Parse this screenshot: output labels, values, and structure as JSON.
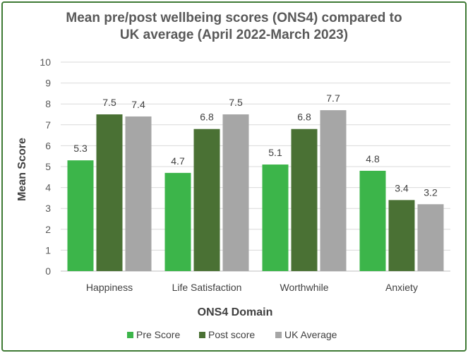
{
  "chart_data": {
    "type": "bar",
    "title_line1": "Mean pre/post wellbeing scores (ONS4) compared to",
    "title_line2": "UK average (April 2022-March 2023)",
    "xlabel": "ONS4 Domain",
    "ylabel": "Mean Score",
    "ylim": [
      0,
      10
    ],
    "yticks": [
      "0",
      "1",
      "2",
      "3",
      "4",
      "5",
      "6",
      "7",
      "8",
      "9",
      "10"
    ],
    "grid": true,
    "legend_position": "bottom",
    "categories": [
      "Happiness",
      "Life Satisfaction",
      "Worthwhile",
      "Anxiety"
    ],
    "series": [
      {
        "name": "Pre Score",
        "color": "#3cb54a",
        "values": [
          5.3,
          4.7,
          5.1,
          4.8
        ],
        "labels": [
          "5.3",
          "4.7",
          "5.1",
          "4.8"
        ]
      },
      {
        "name": "Post score",
        "color": "#4a7134",
        "values": [
          7.5,
          6.8,
          6.8,
          3.4
        ],
        "labels": [
          "7.5",
          "6.8",
          "6.8",
          "3.4"
        ]
      },
      {
        "name": "UK Average",
        "color": "#a6a6a6",
        "values": [
          7.4,
          7.5,
          7.7,
          3.2
        ],
        "labels": [
          "7.4",
          "7.5",
          "7.7",
          "3.2"
        ]
      }
    ]
  }
}
